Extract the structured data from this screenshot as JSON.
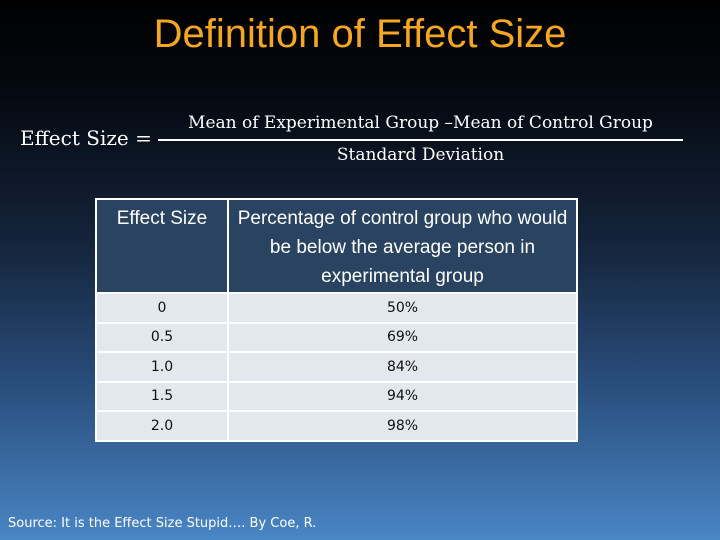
{
  "slide": {
    "title": "Definition of Effect Size",
    "formula": {
      "lhs": "Effect Size =",
      "numerator": "Mean of Experimental Group –Mean of Control Group",
      "denominator": "Standard Deviation"
    },
    "table": {
      "headers": [
        "Effect Size",
        "Percentage of control group who would be below the average person in experimental group"
      ],
      "rows": [
        [
          "0",
          "50%"
        ],
        [
          "0.5",
          "69%"
        ],
        [
          "1.0",
          "84%"
        ],
        [
          "1.5",
          "94%"
        ],
        [
          "2.0",
          "98%"
        ]
      ]
    },
    "source": "Source: It is the Effect Size Stupid…. By Coe, R.",
    "colors": {
      "title": "#f5a623",
      "header_bg": "#2a4360",
      "row_bg": "#e3e7ee"
    }
  }
}
